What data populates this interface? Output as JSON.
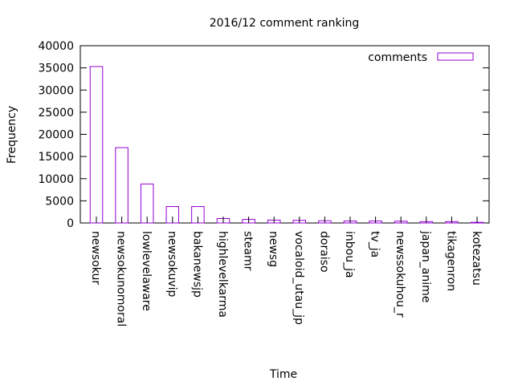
{
  "chart_data": {
    "type": "bar",
    "title": "2016/12 comment ranking",
    "xlabel": "Time",
    "ylabel": "Frequency",
    "ylim": [
      0,
      40000
    ],
    "yticks": [
      "0",
      "5000",
      "10000",
      "15000",
      "20000",
      "25000",
      "30000",
      "35000",
      "40000"
    ],
    "grid": false,
    "legend_position": "top-right",
    "categories": [
      "newsokur",
      "newsokunomoral",
      "lowlevelaware",
      "newsokuvip",
      "bakanewsjp",
      "highlevelkarma",
      "steamr",
      "newsg",
      "vocaloid_utau_jp",
      "doraiso",
      "inbou_ja",
      "tv_ja",
      "newssokuhou_r",
      "japan_anime",
      "tikagenron",
      "kotezatsu"
    ],
    "series": [
      {
        "name": "comments",
        "color": "#9400d3",
        "values": [
          35300,
          17000,
          8800,
          3700,
          3700,
          1000,
          800,
          650,
          600,
          500,
          450,
          450,
          400,
          300,
          300,
          150
        ]
      }
    ]
  }
}
